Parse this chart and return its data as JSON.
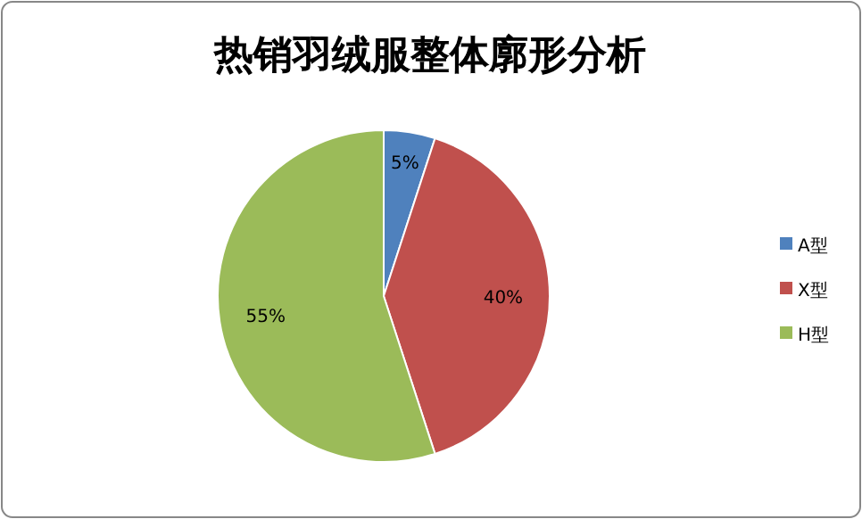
{
  "chart_data": {
    "type": "pie",
    "title": "热销羽绒服整体廓形分析",
    "categories": [
      "A型",
      "X型",
      "H型"
    ],
    "values": [
      5,
      40,
      55
    ],
    "colors": [
      "#4f81bd",
      "#c0504d",
      "#9bbb59"
    ],
    "value_labels": [
      "5%",
      "40%",
      "55%"
    ],
    "legend": "right"
  }
}
